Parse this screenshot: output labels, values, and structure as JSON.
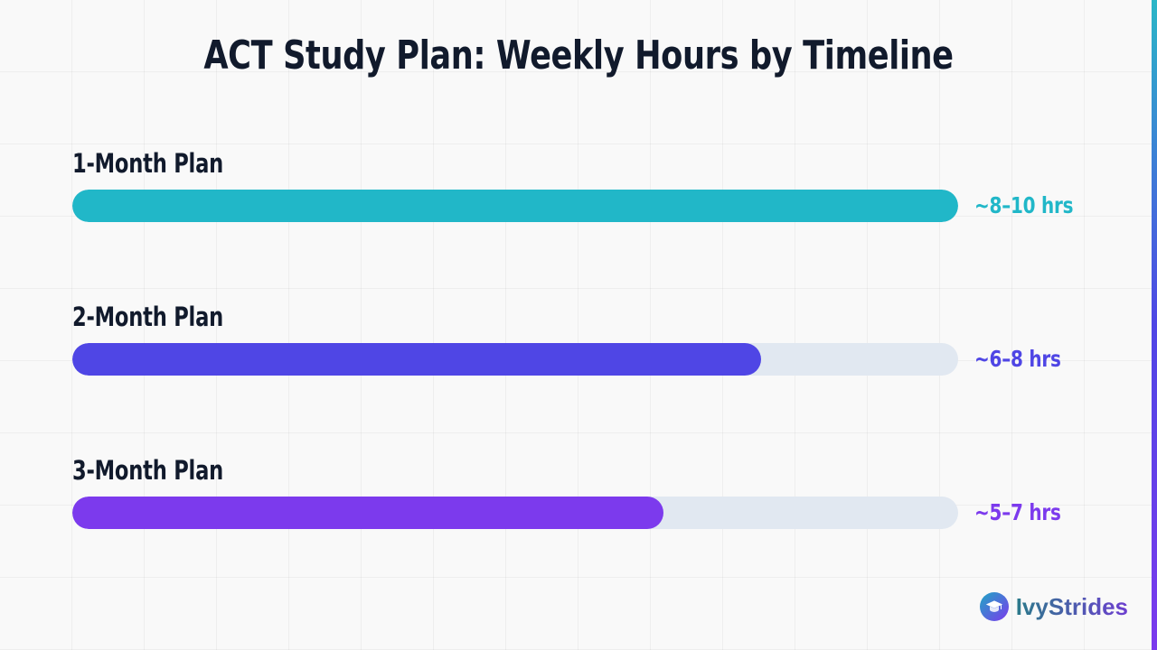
{
  "title": "ACT Study Plan: Weekly Hours by Timeline",
  "brand": {
    "name": "IvyStrides",
    "icon": "graduation-cap-icon"
  },
  "colors": {
    "track": "#e1e8f1",
    "title": "#111a2c"
  },
  "plans": [
    {
      "label": "1-Month Plan",
      "value_label": "~8–10 hrs",
      "fill": 1.0,
      "color": "#21b7c8"
    },
    {
      "label": "2-Month Plan",
      "value_label": "~6–8 hrs",
      "fill": 0.778,
      "color": "#4f46e5"
    },
    {
      "label": "3-Month Plan",
      "value_label": "~5–7 hrs",
      "fill": 0.667,
      "color": "#7c3aed"
    }
  ],
  "chart_data": {
    "type": "bar",
    "orientation": "horizontal",
    "title": "ACT Study Plan: Weekly Hours by Timeline",
    "categories": [
      "1-Month Plan",
      "2-Month Plan",
      "3-Month Plan"
    ],
    "value_labels": [
      "~8–10 hrs",
      "~6–8 hrs",
      "~5–7 hrs"
    ],
    "ranges": [
      [
        8,
        10
      ],
      [
        6,
        8
      ],
      [
        5,
        7
      ]
    ],
    "values": [
      1.0,
      0.778,
      0.667
    ],
    "xlabel": "",
    "ylabel": "",
    "grid": false,
    "legend": "none"
  }
}
